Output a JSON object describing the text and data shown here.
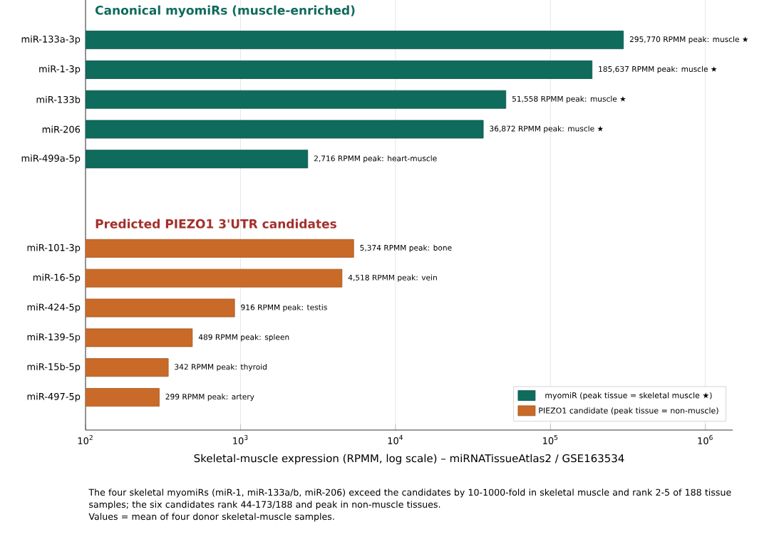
{
  "chart_data": {
    "type": "bar",
    "orientation": "horizontal",
    "log": "x",
    "grid": "x",
    "legend": "bottom right",
    "xlabel": "Skeletal-muscle expression (RPMM, log scale) – miRNATissueAtlas2 / GSE163534",
    "categories": [
      "miR-133a-3p",
      "miR-1-3p",
      "miR-133b",
      "miR-206",
      "miR-499a-5p",
      null,
      null,
      "miR-101-3p",
      "miR-16-5p",
      "miR-424-5p",
      "miR-139-5p",
      "miR-15b-5p",
      "miR-497-5p"
    ],
    "xlim": [
      100,
      1500000
    ],
    "xticks": [
      {
        "value": 100,
        "label": "10$^{2}$"
      },
      {
        "value": 1000,
        "label": "10$^{3}$"
      },
      {
        "value": 10000,
        "label": "10$^{4}$"
      },
      {
        "value": 100000,
        "label": "10$^{5}$"
      },
      {
        "value": 1000000,
        "label": "10$^{6}$"
      }
    ],
    "series": [
      {
        "name": "myomiR (peak tissue = skeletal muscle ★)",
        "color": "#0f6b5c",
        "values": [
          295770,
          185637,
          51558,
          36872,
          2716,
          null,
          null,
          null,
          null,
          null,
          null,
          null,
          null
        ],
        "value_labels": [
          "295,770 RPMM   peak: muscle ★",
          "185,637 RPMM   peak: muscle ★",
          "51,558 RPMM   peak: muscle ★",
          "36,872 RPMM   peak: muscle ★",
          "2,716 RPMM   peak: heart-muscle",
          null,
          null,
          null,
          null,
          null,
          null,
          null,
          null
        ]
      },
      {
        "name": "PIEZO1 candidate (peak tissue = non-muscle)",
        "color": "#c96a28",
        "values": [
          null,
          null,
          null,
          null,
          null,
          null,
          null,
          5374,
          4518,
          916,
          489,
          342,
          299
        ],
        "value_labels": [
          null,
          null,
          null,
          null,
          null,
          null,
          null,
          "5,374 RPMM   peak: bone",
          "4,518 RPMM   peak: vein",
          "916 RPMM   peak: testis",
          "489 RPMM   peak: spleen",
          "342 RPMM   peak: thyroid",
          "299 RPMM   peak: artery"
        ]
      }
    ],
    "annotations": [
      "Canonical myomiRs (muscle-enriched)",
      "Predicted PIEZO1 3'UTR candidates",
      "The four skeletal myomiRs (miR-1, miR-133a/b, miR-206) exceed the candidates by 10-1000-fold in skeletal muscle and rank 2-5 of 188 tissue samples; the six candidates rank 44-173/188 and peak in non-muscle tissues.",
      "Values = mean of four donor skeletal-muscle samples."
    ]
  }
}
